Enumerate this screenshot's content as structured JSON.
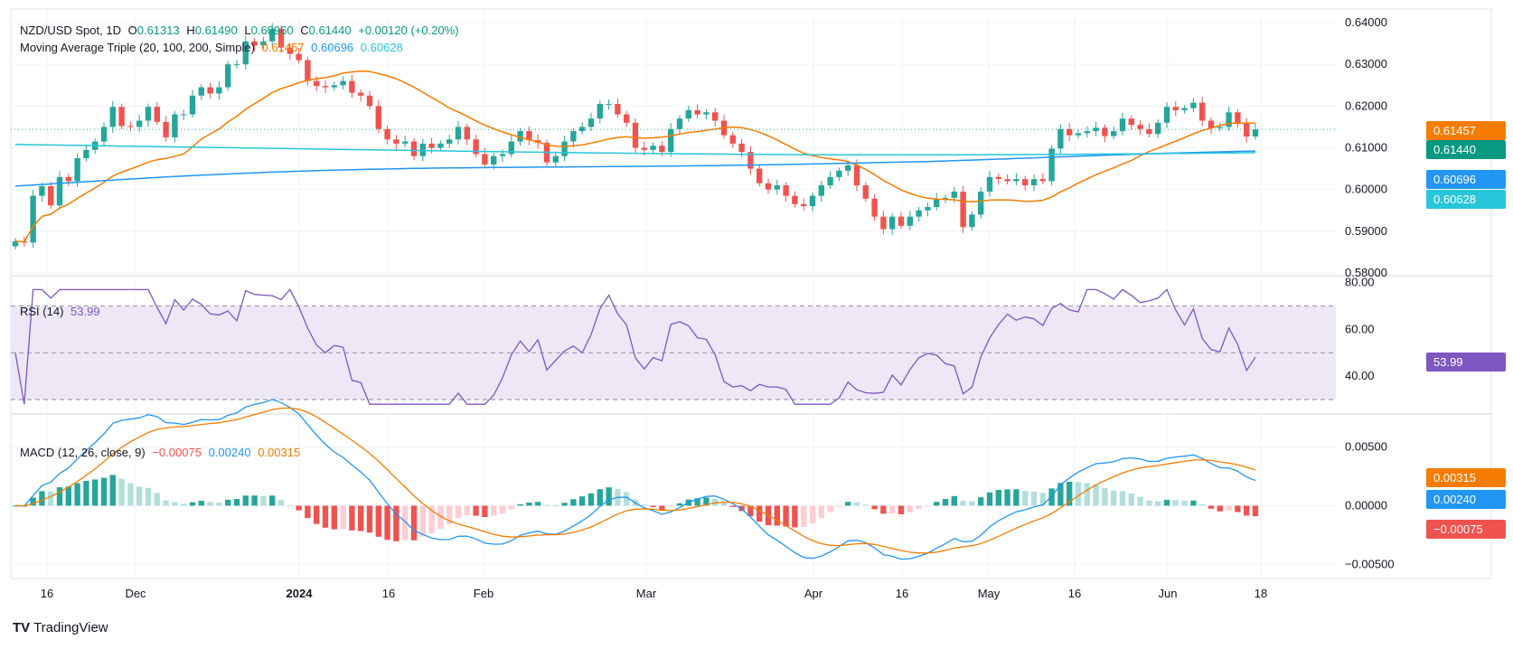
{
  "main_legend": {
    "symbol": "NZD/USD Spot, 1D",
    "o_label": "O",
    "o_value": "0.61313",
    "h_label": "H",
    "h_value": "0.61490",
    "l_label": "L",
    "l_value": "0.60960",
    "c_label": "C",
    "c_value": "0.61440",
    "change": "+0.00120 (+0.20%)"
  },
  "ma_legend": {
    "name": "Moving Average Triple (20, 100, 200, Simple)",
    "v20": "0.61457",
    "v100": "0.60696",
    "v200": "0.60628"
  },
  "rsi_legend": {
    "name": "RSI (14)",
    "value": "53.99"
  },
  "macd_legend": {
    "name": "MACD (12, 26, close, 9)",
    "hist": "−0.00075",
    "macd": "0.00240",
    "signal": "0.00315"
  },
  "badges": {
    "ma20": "0.61457",
    "close": "0.61440",
    "ma100": "0.60696",
    "ma200": "0.60628",
    "rsi": "53.99",
    "signal": "0.00315",
    "macd": "0.00240",
    "hist": "−0.00075"
  },
  "footer": {
    "brand": "TradingView"
  },
  "colors": {
    "up": "#26a69a",
    "down": "#ef5350",
    "ma20": "#f57c00",
    "ma100": "#2196f3",
    "ma200": "#26c6da",
    "rsi": "#7e57c2",
    "rsi_band": "#ede7f6",
    "macd": "#2196f3",
    "signal": "#f57c00",
    "hist_up_strong": "#26a69a",
    "hist_up_weak": "#b2dfdb",
    "hist_dn_strong": "#ef5350",
    "hist_dn_weak": "#ffcdd2",
    "grid": "#f0f3fa",
    "text": "#131722"
  },
  "chart_data": {
    "type": "candlestick",
    "symbol": "NZD/USD Spot",
    "timeframe": "1D",
    "x_ticks": [
      "16",
      "Dec",
      "2024",
      "16",
      "Feb",
      "Mar",
      "Apr",
      "16",
      "May",
      "16",
      "Jun",
      "18"
    ],
    "price_axis": {
      "range": [
        0.58,
        0.64
      ],
      "ticks": [
        "0.64000",
        "0.63000",
        "0.62000",
        "0.61000",
        "0.60000",
        "0.59000",
        "0.58000"
      ]
    },
    "candles_approx_close": [
      0.5876,
      0.5873,
      0.5985,
      0.6008,
      0.5962,
      0.603,
      0.602,
      0.6075,
      0.6095,
      0.6115,
      0.615,
      0.6198,
      0.6152,
      0.615,
      0.6165,
      0.6198,
      0.6162,
      0.6125,
      0.618,
      0.618,
      0.6225,
      0.6245,
      0.623,
      0.6245,
      0.63,
      0.63,
      0.6355,
      0.6345,
      0.6355,
      0.6385,
      0.634,
      0.6325,
      0.631,
      0.626,
      0.6248,
      0.6245,
      0.625,
      0.626,
      0.6232,
      0.6225,
      0.62,
      0.6145,
      0.612,
      0.611,
      0.6115,
      0.608,
      0.611,
      0.61,
      0.611,
      0.612,
      0.615,
      0.612,
      0.6085,
      0.606,
      0.608,
      0.6085,
      0.6115,
      0.614,
      0.6118,
      0.6112,
      0.6065,
      0.608,
      0.6115,
      0.614,
      0.615,
      0.617,
      0.6205,
      0.6205,
      0.618,
      0.616,
      0.61,
      0.6095,
      0.6105,
      0.609,
      0.6145,
      0.617,
      0.619,
      0.618,
      0.6185,
      0.6165,
      0.613,
      0.611,
      0.609,
      0.605,
      0.6015,
      0.6,
      0.601,
      0.5985,
      0.5965,
      0.596,
      0.5985,
      0.601,
      0.603,
      0.6045,
      0.6058,
      0.601,
      0.5978,
      0.5935,
      0.5905,
      0.5935,
      0.5913,
      0.5935,
      0.595,
      0.5958,
      0.5978,
      0.598,
      0.5995,
      0.591,
      0.594,
      0.5995,
      0.603,
      0.6025,
      0.602,
      0.6025,
      0.601,
      0.6025,
      0.602,
      0.6098,
      0.6145,
      0.613,
      0.6135,
      0.614,
      0.6148,
      0.6128,
      0.614,
      0.617,
      0.6155,
      0.6145,
      0.6133,
      0.616,
      0.6198,
      0.619,
      0.6195,
      0.6208,
      0.6165,
      0.6147,
      0.615,
      0.6185,
      0.616,
      0.6127,
      0.6144
    ],
    "moving_averages": [
      {
        "name": "MA20",
        "last": 0.61457
      },
      {
        "name": "MA100",
        "last": 0.60696
      },
      {
        "name": "MA200",
        "last": 0.60628
      }
    ],
    "rsi": {
      "ticks": [
        "80.00",
        "60.00",
        "40.00"
      ],
      "upper": 70,
      "lower": 30,
      "range": [
        25,
        81
      ],
      "last": 53.99
    },
    "macd": {
      "ticks": [
        "0.00500",
        "0.00000",
        "−0.00500"
      ],
      "range": [
        -0.0062,
        0.0075
      ],
      "last_macd": 0.0024,
      "last_signal": 0.00315,
      "last_hist": -0.00075
    }
  }
}
